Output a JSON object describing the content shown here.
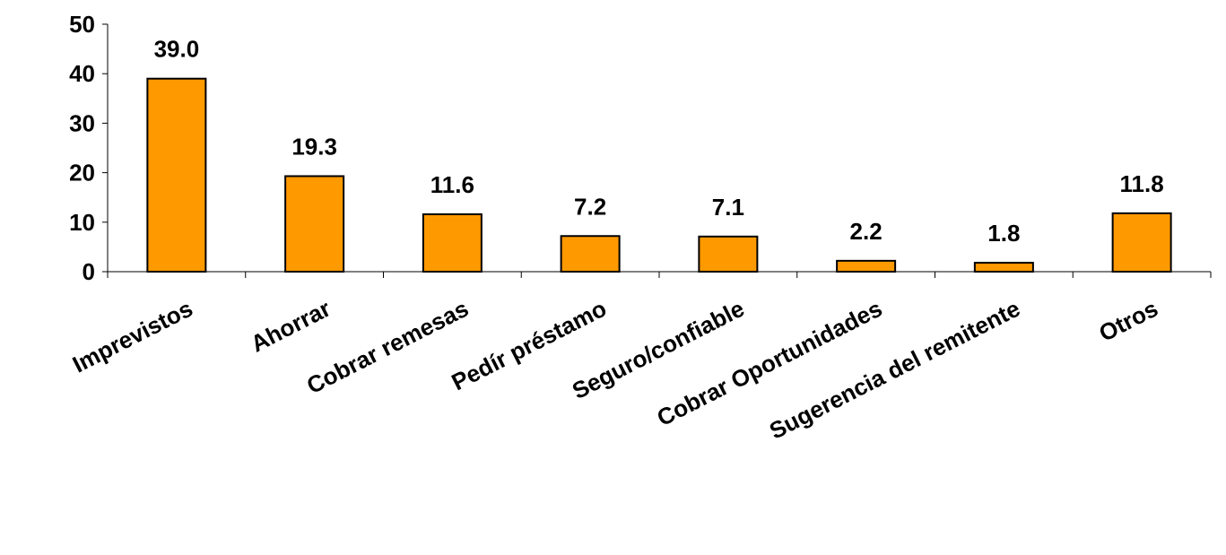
{
  "colors": {
    "bar_fill": "#FF9900",
    "bar_stroke": "#000000",
    "axis": "#000000",
    "background": "#FFFFFF"
  },
  "chart_data": {
    "type": "bar",
    "title": "",
    "xlabel": "",
    "ylabel": "",
    "categories": [
      "Imprevistos",
      "Ahorrar",
      "Cobrar remesas",
      "Pedír préstamo",
      "Seguro/confiable",
      "Cobrar Oportunidades",
      "Sugerencia del remitente",
      "Otros"
    ],
    "values": [
      39.0,
      19.3,
      11.6,
      7.2,
      7.1,
      2.2,
      1.8,
      11.8
    ],
    "data_labels": [
      "39.0",
      "19.3",
      "11.6",
      "7.2",
      "7.1",
      "2.2",
      "1.8",
      "11.8"
    ],
    "ylim": [
      0,
      50
    ],
    "yticks": [
      0,
      10,
      20,
      30,
      40,
      50
    ],
    "grid": false,
    "legend": "none"
  }
}
